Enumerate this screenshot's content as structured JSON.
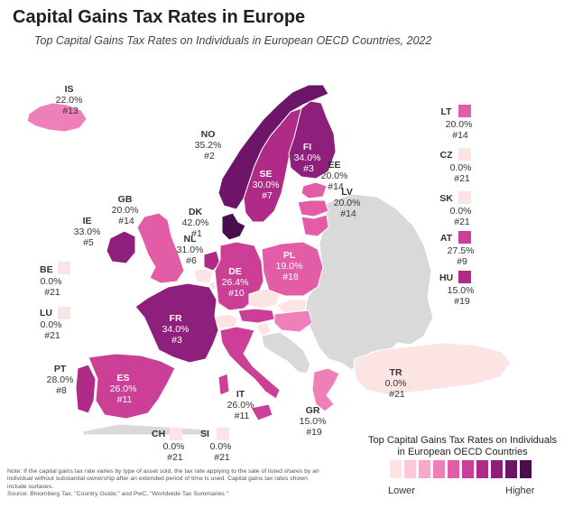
{
  "title": "Capital Gains Tax Rates in Europe",
  "subtitle": "Top Capital Gains Tax Rates on Individuals in European OECD Countries, 2022",
  "legend": {
    "title": "Top Capital Gains Tax Rates on Individuals in European OECD Countries",
    "low": "Lower",
    "high": "Higher",
    "colors": [
      "#fde4e4",
      "#fbc9d6",
      "#f7a9c8",
      "#ef7fb8",
      "#e25ca6",
      "#cc3f96",
      "#b02b88",
      "#8f1f7c",
      "#6d1569",
      "#4a0d4e"
    ]
  },
  "note": "Note: If the capital gains tax rate varies by type of asset sold, the tax rate applying to the sale of listed shares by an individual without substantial ownership after an extended period of time is used. Capital gains tax rates shown include surtaxes.",
  "source": "Source: Bloomberg Tax, \"Country Guide;\" and PwC, \"Worldwide Tax Summaries.\"",
  "colors": {
    "non_oecd": "#d9d9d9",
    "sea": "#ffffff",
    "border": "#ffffff",
    "lowest": "#fde4e4"
  },
  "countries": [
    {
      "code": "IS",
      "rate": "22.0%",
      "rank": "#13"
    },
    {
      "code": "NO",
      "rate": "35.2%",
      "rank": "#2"
    },
    {
      "code": "FI",
      "rate": "34.0%",
      "rank": "#3"
    },
    {
      "code": "SE",
      "rate": "30.0%",
      "rank": "#7"
    },
    {
      "code": "EE",
      "rate": "20.0%",
      "rank": "#14"
    },
    {
      "code": "LV",
      "rate": "20.0%",
      "rank": "#14"
    },
    {
      "code": "DK",
      "rate": "42.0%",
      "rank": "#1"
    },
    {
      "code": "GB",
      "rate": "20.0%",
      "rank": "#14"
    },
    {
      "code": "IE",
      "rate": "33.0%",
      "rank": "#5"
    },
    {
      "code": "NL",
      "rate": "31.0%",
      "rank": "#6"
    },
    {
      "code": "DE",
      "rate": "26.4%",
      "rank": "#10"
    },
    {
      "code": "PL",
      "rate": "19.0%",
      "rank": "#18"
    },
    {
      "code": "FR",
      "rate": "34.0%",
      "rank": "#3"
    },
    {
      "code": "PT",
      "rate": "28.0%",
      "rank": "#8"
    },
    {
      "code": "ES",
      "rate": "26.0%",
      "rank": "#11"
    },
    {
      "code": "IT",
      "rate": "26.0%",
      "rank": "#11"
    },
    {
      "code": "GR",
      "rate": "15.0%",
      "rank": "#19"
    },
    {
      "code": "TR",
      "rate": "0.0%",
      "rank": "#21"
    },
    {
      "code": "BE",
      "rate": "0.0%",
      "rank": "#21"
    },
    {
      "code": "LU",
      "rate": "0.0%",
      "rank": "#21"
    },
    {
      "code": "CH",
      "rate": "0.0%",
      "rank": "#21"
    },
    {
      "code": "SI",
      "rate": "0.0%",
      "rank": "#21"
    },
    {
      "code": "LT",
      "rate": "20.0%",
      "rank": "#14"
    },
    {
      "code": "CZ",
      "rate": "0.0%",
      "rank": "#21"
    },
    {
      "code": "SK",
      "rate": "0.0%",
      "rank": "#21"
    },
    {
      "code": "AT",
      "rate": "27.5%",
      "rank": "#9"
    },
    {
      "code": "HU",
      "rate": "15.0%",
      "rank": "#19"
    }
  ]
}
